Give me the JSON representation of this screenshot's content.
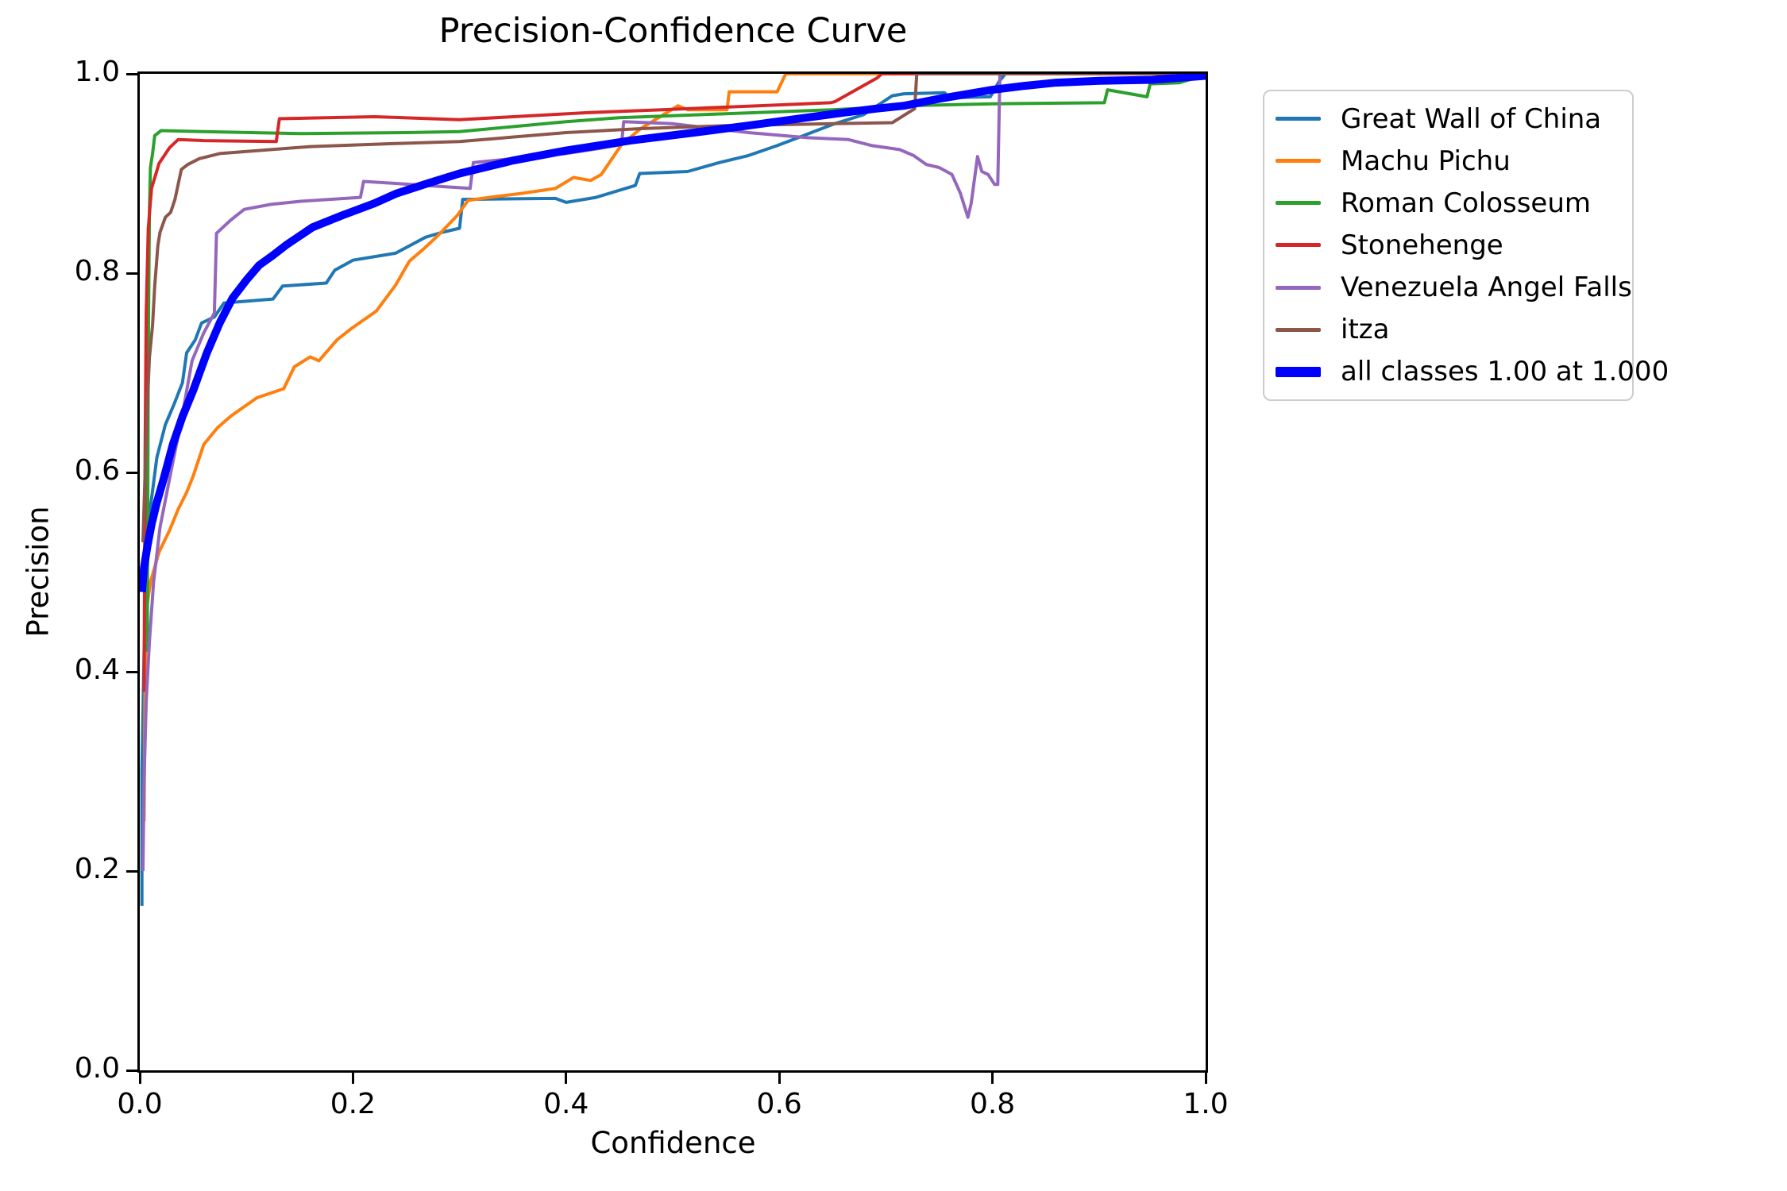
{
  "chart_data": {
    "type": "line",
    "title": "Precision-Confidence Curve",
    "xlabel": "Confidence",
    "ylabel": "Precision",
    "xlim": [
      0.0,
      1.0
    ],
    "ylim": [
      0.0,
      1.0
    ],
    "grid": false,
    "background_color": "#ffffff",
    "axes_color": "#000000",
    "legend_position": "outside-upper-right",
    "legend_border_color": "#cccccc",
    "x_ticks": [
      "0.0",
      "0.2",
      "0.4",
      "0.6",
      "0.8",
      "1.0"
    ],
    "y_ticks": [
      "0.0",
      "0.2",
      "0.4",
      "0.6",
      "0.8",
      "1.0"
    ],
    "series": [
      {
        "name": "Great Wall of China",
        "color": "#1f77b4",
        "line_width": 4,
        "points": [
          [
            0.002,
            0.165
          ],
          [
            0.002,
            0.3
          ],
          [
            0.004,
            0.42
          ],
          [
            0.006,
            0.5
          ],
          [
            0.01,
            0.565
          ],
          [
            0.016,
            0.615
          ],
          [
            0.024,
            0.648
          ],
          [
            0.032,
            0.668
          ],
          [
            0.04,
            0.69
          ],
          [
            0.044,
            0.72
          ],
          [
            0.052,
            0.733
          ],
          [
            0.058,
            0.75
          ],
          [
            0.07,
            0.756
          ],
          [
            0.079,
            0.77
          ],
          [
            0.125,
            0.774
          ],
          [
            0.134,
            0.787
          ],
          [
            0.175,
            0.79
          ],
          [
            0.183,
            0.803
          ],
          [
            0.2,
            0.813
          ],
          [
            0.24,
            0.82
          ],
          [
            0.268,
            0.836
          ],
          [
            0.284,
            0.841
          ],
          [
            0.3,
            0.845
          ],
          [
            0.303,
            0.874
          ],
          [
            0.39,
            0.875
          ],
          [
            0.4,
            0.871
          ],
          [
            0.428,
            0.876
          ],
          [
            0.465,
            0.888
          ],
          [
            0.469,
            0.9
          ],
          [
            0.514,
            0.902
          ],
          [
            0.544,
            0.911
          ],
          [
            0.571,
            0.918
          ],
          [
            0.598,
            0.928
          ],
          [
            0.625,
            0.939
          ],
          [
            0.652,
            0.95
          ],
          [
            0.679,
            0.959
          ],
          [
            0.706,
            0.978
          ],
          [
            0.717,
            0.98
          ],
          [
            0.755,
            0.981
          ],
          [
            0.76,
            0.976
          ],
          [
            0.798,
            0.977
          ],
          [
            0.806,
            0.992
          ],
          [
            0.812,
            1.0
          ],
          [
            1.0,
            1.0
          ]
        ]
      },
      {
        "name": "Machu Pichu",
        "color": "#ff7f0e",
        "line_width": 4,
        "points": [
          [
            0.004,
            0.25
          ],
          [
            0.005,
            0.4
          ],
          [
            0.006,
            0.46
          ],
          [
            0.01,
            0.49
          ],
          [
            0.018,
            0.52
          ],
          [
            0.028,
            0.542
          ],
          [
            0.036,
            0.563
          ],
          [
            0.044,
            0.58
          ],
          [
            0.05,
            0.596
          ],
          [
            0.06,
            0.628
          ],
          [
            0.073,
            0.645
          ],
          [
            0.086,
            0.657
          ],
          [
            0.11,
            0.675
          ],
          [
            0.135,
            0.684
          ],
          [
            0.145,
            0.706
          ],
          [
            0.16,
            0.716
          ],
          [
            0.168,
            0.712
          ],
          [
            0.185,
            0.733
          ],
          [
            0.198,
            0.744
          ],
          [
            0.222,
            0.762
          ],
          [
            0.24,
            0.788
          ],
          [
            0.253,
            0.812
          ],
          [
            0.266,
            0.824
          ],
          [
            0.28,
            0.838
          ],
          [
            0.298,
            0.858
          ],
          [
            0.308,
            0.873
          ],
          [
            0.328,
            0.876
          ],
          [
            0.358,
            0.88
          ],
          [
            0.39,
            0.885
          ],
          [
            0.407,
            0.896
          ],
          [
            0.423,
            0.893
          ],
          [
            0.433,
            0.899
          ],
          [
            0.452,
            0.929
          ],
          [
            0.47,
            0.945
          ],
          [
            0.505,
            0.968
          ],
          [
            0.514,
            0.964
          ],
          [
            0.551,
            0.964
          ],
          [
            0.553,
            0.982
          ],
          [
            0.598,
            0.982
          ],
          [
            0.606,
            1.0
          ],
          [
            1.0,
            1.0
          ]
        ]
      },
      {
        "name": "Roman Colosseum",
        "color": "#2ca02c",
        "line_width": 4,
        "points": [
          [
            0.007,
            0.42
          ],
          [
            0.008,
            0.72
          ],
          [
            0.009,
            0.86
          ],
          [
            0.01,
            0.906
          ],
          [
            0.012,
            0.92
          ],
          [
            0.014,
            0.938
          ],
          [
            0.02,
            0.943
          ],
          [
            0.06,
            0.942
          ],
          [
            0.15,
            0.94
          ],
          [
            0.25,
            0.941
          ],
          [
            0.3,
            0.942
          ],
          [
            0.4,
            0.952
          ],
          [
            0.45,
            0.956
          ],
          [
            0.55,
            0.96
          ],
          [
            0.65,
            0.964
          ],
          [
            0.72,
            0.968
          ],
          [
            0.8,
            0.97
          ],
          [
            0.905,
            0.971
          ],
          [
            0.908,
            0.984
          ],
          [
            0.945,
            0.977
          ],
          [
            0.948,
            0.99
          ],
          [
            0.975,
            0.991
          ],
          [
            1.0,
            0.999
          ]
        ]
      },
      {
        "name": "Stonehenge",
        "color": "#d62728",
        "line_width": 4,
        "points": [
          [
            0.004,
            0.38
          ],
          [
            0.005,
            0.62
          ],
          [
            0.006,
            0.76
          ],
          [
            0.008,
            0.845
          ],
          [
            0.011,
            0.885
          ],
          [
            0.018,
            0.91
          ],
          [
            0.028,
            0.926
          ],
          [
            0.036,
            0.934
          ],
          [
            0.06,
            0.933
          ],
          [
            0.128,
            0.932
          ],
          [
            0.131,
            0.955
          ],
          [
            0.22,
            0.957
          ],
          [
            0.3,
            0.954
          ],
          [
            0.42,
            0.961
          ],
          [
            0.49,
            0.964
          ],
          [
            0.58,
            0.968
          ],
          [
            0.648,
            0.971
          ],
          [
            0.652,
            0.972
          ],
          [
            0.692,
            0.996
          ],
          [
            0.696,
            1.0
          ],
          [
            1.0,
            1.0
          ]
        ]
      },
      {
        "name": "Venezuela Angel Falls",
        "color": "#9467bd",
        "line_width": 4,
        "points": [
          [
            0.003,
            0.2
          ],
          [
            0.004,
            0.29
          ],
          [
            0.006,
            0.37
          ],
          [
            0.009,
            0.43
          ],
          [
            0.013,
            0.49
          ],
          [
            0.019,
            0.545
          ],
          [
            0.03,
            0.605
          ],
          [
            0.04,
            0.658
          ],
          [
            0.049,
            0.712
          ],
          [
            0.06,
            0.74
          ],
          [
            0.07,
            0.76
          ],
          [
            0.072,
            0.84
          ],
          [
            0.085,
            0.853
          ],
          [
            0.098,
            0.864
          ],
          [
            0.123,
            0.869
          ],
          [
            0.15,
            0.872
          ],
          [
            0.207,
            0.876
          ],
          [
            0.21,
            0.892
          ],
          [
            0.24,
            0.89
          ],
          [
            0.268,
            0.888
          ],
          [
            0.31,
            0.885
          ],
          [
            0.313,
            0.911
          ],
          [
            0.36,
            0.916
          ],
          [
            0.4,
            0.92
          ],
          [
            0.43,
            0.925
          ],
          [
            0.452,
            0.929
          ],
          [
            0.454,
            0.952
          ],
          [
            0.5,
            0.95
          ],
          [
            0.571,
            0.941
          ],
          [
            0.625,
            0.936
          ],
          [
            0.665,
            0.934
          ],
          [
            0.687,
            0.928
          ],
          [
            0.713,
            0.924
          ],
          [
            0.726,
            0.918
          ],
          [
            0.738,
            0.909
          ],
          [
            0.75,
            0.906
          ],
          [
            0.762,
            0.899
          ],
          [
            0.77,
            0.88
          ],
          [
            0.777,
            0.856
          ],
          [
            0.78,
            0.87
          ],
          [
            0.786,
            0.917
          ],
          [
            0.79,
            0.902
          ],
          [
            0.796,
            0.899
          ],
          [
            0.802,
            0.889
          ],
          [
            0.805,
            0.889
          ],
          [
            0.807,
            1.0
          ],
          [
            1.0,
            1.0
          ]
        ]
      },
      {
        "name": "itza",
        "color": "#8c564b",
        "line_width": 4,
        "points": [
          [
            0.003,
            0.53
          ],
          [
            0.005,
            0.6
          ],
          [
            0.007,
            0.665
          ],
          [
            0.009,
            0.715
          ],
          [
            0.012,
            0.748
          ],
          [
            0.014,
            0.787
          ],
          [
            0.017,
            0.828
          ],
          [
            0.019,
            0.841
          ],
          [
            0.024,
            0.856
          ],
          [
            0.029,
            0.861
          ],
          [
            0.033,
            0.874
          ],
          [
            0.039,
            0.904
          ],
          [
            0.045,
            0.909
          ],
          [
            0.056,
            0.915
          ],
          [
            0.075,
            0.92
          ],
          [
            0.16,
            0.927
          ],
          [
            0.24,
            0.93
          ],
          [
            0.3,
            0.932
          ],
          [
            0.4,
            0.941
          ],
          [
            0.47,
            0.945
          ],
          [
            0.55,
            0.948
          ],
          [
            0.65,
            0.95
          ],
          [
            0.706,
            0.951
          ],
          [
            0.727,
            0.965
          ],
          [
            0.729,
            1.0
          ],
          [
            1.0,
            1.0
          ]
        ]
      },
      {
        "name": "all classes 1.00 at 1.000",
        "color": "#0000ff",
        "line_width": 10,
        "points": [
          [
            0.002,
            0.48
          ],
          [
            0.004,
            0.505
          ],
          [
            0.007,
            0.525
          ],
          [
            0.011,
            0.548
          ],
          [
            0.016,
            0.57
          ],
          [
            0.022,
            0.592
          ],
          [
            0.031,
            0.628
          ],
          [
            0.04,
            0.656
          ],
          [
            0.05,
            0.682
          ],
          [
            0.063,
            0.72
          ],
          [
            0.075,
            0.75
          ],
          [
            0.087,
            0.775
          ],
          [
            0.1,
            0.793
          ],
          [
            0.112,
            0.808
          ],
          [
            0.125,
            0.818
          ],
          [
            0.137,
            0.828
          ],
          [
            0.162,
            0.846
          ],
          [
            0.19,
            0.858
          ],
          [
            0.22,
            0.87
          ],
          [
            0.241,
            0.88
          ],
          [
            0.27,
            0.89
          ],
          [
            0.3,
            0.9
          ],
          [
            0.35,
            0.913
          ],
          [
            0.4,
            0.923
          ],
          [
            0.46,
            0.933
          ],
          [
            0.52,
            0.941
          ],
          [
            0.57,
            0.948
          ],
          [
            0.625,
            0.956
          ],
          [
            0.66,
            0.961
          ],
          [
            0.69,
            0.965
          ],
          [
            0.717,
            0.968
          ],
          [
            0.75,
            0.975
          ],
          [
            0.8,
            0.984
          ],
          [
            0.83,
            0.988
          ],
          [
            0.858,
            0.991
          ],
          [
            0.9,
            0.993
          ],
          [
            0.95,
            0.994
          ],
          [
            1.0,
            0.998
          ]
        ]
      }
    ]
  }
}
